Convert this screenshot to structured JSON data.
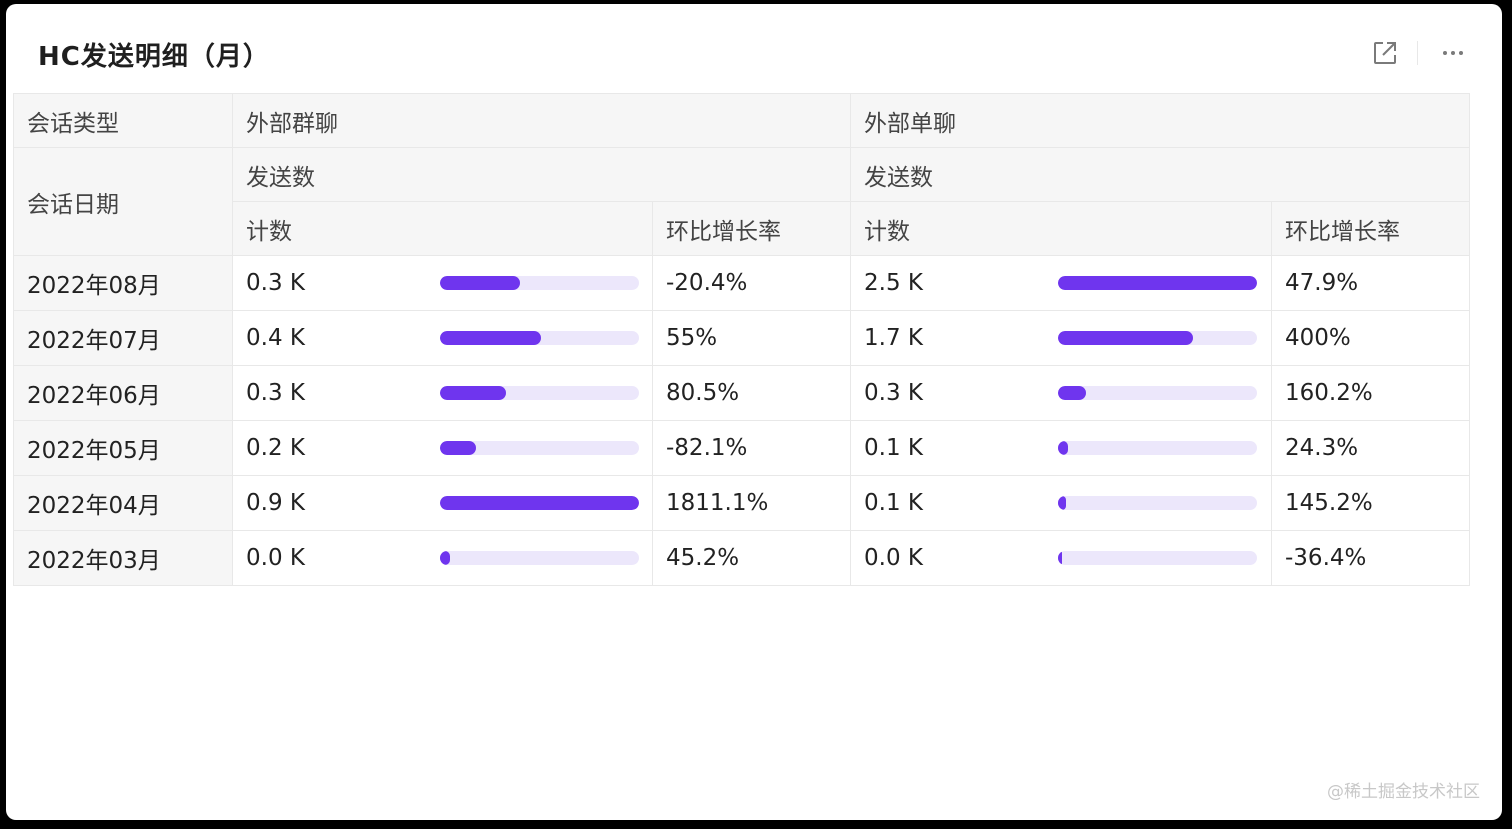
{
  "card": {
    "title": "HC发送明细（月）",
    "icons": [
      "external-link-icon",
      "more-icon"
    ]
  },
  "table": {
    "header": {
      "row_label_1": "会话类型",
      "row_label_2": "会话日期",
      "group_a": "外部群聊",
      "group_b": "外部单聊",
      "metric_a": "发送数",
      "metric_b": "发送数",
      "count_a": "计数",
      "growth_a": "环比增长率",
      "count_b": "计数",
      "growth_b": "环比增长率"
    },
    "rows": [
      {
        "date": "2022年08月",
        "a_count": "0.3 K",
        "a_bar": 0.4,
        "a_growth": "-20.4%",
        "b_count": "2.5 K",
        "b_bar": 1.0,
        "b_growth": "47.9%"
      },
      {
        "date": "2022年07月",
        "a_count": "0.4 K",
        "a_bar": 0.51,
        "a_growth": "55%",
        "b_count": "1.7 K",
        "b_bar": 0.68,
        "b_growth": "400%"
      },
      {
        "date": "2022年06月",
        "a_count": "0.3 K",
        "a_bar": 0.33,
        "a_growth": "80.5%",
        "b_count": "0.3 K",
        "b_bar": 0.14,
        "b_growth": "160.2%"
      },
      {
        "date": "2022年05月",
        "a_count": "0.2 K",
        "a_bar": 0.18,
        "a_growth": "-82.1%",
        "b_count": "0.1 K",
        "b_bar": 0.05,
        "b_growth": "24.3%"
      },
      {
        "date": "2022年04月",
        "a_count": "0.9 K",
        "a_bar": 1.0,
        "a_growth": "1811.1%",
        "b_count": "0.1 K",
        "b_bar": 0.04,
        "b_growth": "145.2%"
      },
      {
        "date": "2022年03月",
        "a_count": "0.0 K",
        "a_bar": 0.05,
        "a_growth": "45.2%",
        "b_count": "0.0 K",
        "b_bar": 0.02,
        "b_growth": "-36.4%"
      }
    ]
  },
  "watermark": "@稀土掘金技术社区",
  "colors": {
    "bar_fill": "#6f35ee",
    "bar_track": "#ece7fb",
    "header_bg": "#f6f6f6"
  }
}
